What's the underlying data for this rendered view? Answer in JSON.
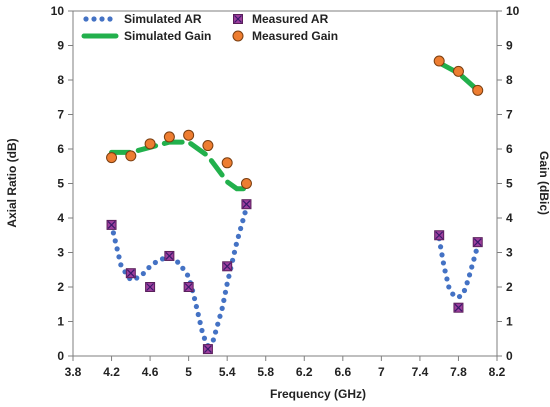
{
  "chart_data": {
    "type": "scatter",
    "xlabel": "Frequency (GHz)",
    "ylabel_left": "Axial Ratio (dB)",
    "ylabel_right": "Gain (dBic)",
    "xlim": [
      3.8,
      8.2
    ],
    "ylim_left": [
      0,
      10
    ],
    "ylim_right": [
      0,
      10
    ],
    "x_ticks": [
      "3.8",
      "4.2",
      "4.6",
      "5",
      "5.4",
      "5.8",
      "6.2",
      "6.6",
      "7",
      "7.4",
      "7.8",
      "8.2"
    ],
    "x_tick_values": [
      3.8,
      4.2,
      4.6,
      5.0,
      5.4,
      5.8,
      6.2,
      6.6,
      7.0,
      7.4,
      7.8,
      8.2
    ],
    "y_ticks": [
      "0",
      "1",
      "2",
      "3",
      "4",
      "5",
      "6",
      "7",
      "8",
      "9",
      "10"
    ],
    "legend_placement": "top-left",
    "grid": false,
    "series": [
      {
        "name": "Simulated AR",
        "style": "dotted-line",
        "color": "#4472C4",
        "axis": "left",
        "segments": [
          [
            [
              4.2,
              3.8
            ],
            [
              4.3,
              2.6
            ],
            [
              4.4,
              2.2
            ],
            [
              4.5,
              2.3
            ],
            [
              4.6,
              2.6
            ],
            [
              4.7,
              2.8
            ],
            [
              4.8,
              2.85
            ],
            [
              4.9,
              2.7
            ],
            [
              5.0,
              2.3
            ],
            [
              5.05,
              1.8
            ],
            [
              5.1,
              1.2
            ],
            [
              5.15,
              0.6
            ],
            [
              5.2,
              0.3
            ],
            [
              5.25,
              0.4
            ],
            [
              5.3,
              0.9
            ],
            [
              5.35,
              1.4
            ],
            [
              5.4,
              2.1
            ],
            [
              5.45,
              2.7
            ],
            [
              5.5,
              3.3
            ],
            [
              5.55,
              3.8
            ],
            [
              5.6,
              4.3
            ]
          ],
          [
            [
              7.6,
              3.4
            ],
            [
              7.65,
              2.6
            ],
            [
              7.7,
              2.0
            ],
            [
              7.75,
              1.75
            ],
            [
              7.8,
              1.7
            ],
            [
              7.85,
              1.8
            ],
            [
              7.9,
              2.2
            ],
            [
              7.95,
              2.7
            ],
            [
              8.0,
              3.2
            ]
          ]
        ]
      },
      {
        "name": "Simulated Gain",
        "style": "dashed-line",
        "color": "#22B04C",
        "axis": "right",
        "segments": [
          [
            [
              4.2,
              5.9
            ],
            [
              4.4,
              5.9
            ],
            [
              4.6,
              6.05
            ],
            [
              4.8,
              6.2
            ],
            [
              5.0,
              6.2
            ],
            [
              5.2,
              5.8
            ],
            [
              5.4,
              5.05
            ],
            [
              5.5,
              4.85
            ],
            [
              5.6,
              4.85
            ]
          ],
          [
            [
              7.6,
              8.5
            ],
            [
              7.8,
              8.2
            ],
            [
              8.0,
              7.7
            ]
          ]
        ]
      },
      {
        "name": "Measured AR",
        "style": "marker-square",
        "color": "#9E3F9E",
        "axis": "left",
        "points": [
          [
            4.2,
            3.8
          ],
          [
            4.4,
            2.4
          ],
          [
            4.6,
            2.0
          ],
          [
            4.8,
            2.9
          ],
          [
            5.0,
            2.0
          ],
          [
            5.2,
            0.2
          ],
          [
            5.4,
            2.6
          ],
          [
            5.6,
            4.4
          ],
          [
            7.6,
            3.5
          ],
          [
            7.8,
            1.4
          ],
          [
            8.0,
            3.3
          ]
        ]
      },
      {
        "name": "Measured Gain",
        "style": "marker-circle",
        "color": "#ED7D31",
        "axis": "right",
        "points": [
          [
            4.2,
            5.75
          ],
          [
            4.4,
            5.8
          ],
          [
            4.6,
            6.15
          ],
          [
            4.8,
            6.35
          ],
          [
            5.0,
            6.4
          ],
          [
            5.2,
            6.1
          ],
          [
            5.4,
            5.6
          ],
          [
            5.6,
            5.0
          ],
          [
            7.6,
            8.55
          ],
          [
            7.8,
            8.25
          ],
          [
            8.0,
            7.7
          ]
        ]
      }
    ]
  }
}
